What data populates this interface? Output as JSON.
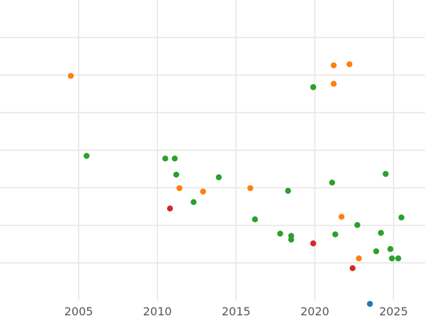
{
  "chart_data": {
    "type": "scatter",
    "title": "",
    "xlabel": "",
    "ylabel": "",
    "xlim": [
      2000.0,
      2027.0
    ],
    "ylim": [
      0.0,
      8.0
    ],
    "x_ticks": [
      2005,
      2010,
      2015,
      2020,
      2025
    ],
    "x_tick_labels": [
      "2005",
      "2010",
      "2015",
      "2020",
      "2025"
    ],
    "y_gridlines": [
      1,
      2,
      3,
      4,
      5,
      6,
      7
    ],
    "grid": true,
    "legend": "none",
    "colors": {
      "green": "#2ca02c",
      "orange": "#ff7f0e",
      "red": "#d62728",
      "blue": "#1f77b4",
      "grid": "#e5e5e5"
    },
    "series": [
      {
        "color": "#2ca02c",
        "points": [
          [
            2005.5,
            3.85
          ],
          [
            2010.5,
            3.78
          ],
          [
            2011.1,
            3.78
          ],
          [
            2011.2,
            3.35
          ],
          [
            2012.3,
            2.62
          ],
          [
            2013.9,
            3.28
          ],
          [
            2016.2,
            2.16
          ],
          [
            2017.8,
            1.78
          ],
          [
            2018.3,
            2.92
          ],
          [
            2018.5,
            1.72
          ],
          [
            2018.5,
            1.62
          ],
          [
            2019.9,
            5.68
          ],
          [
            2021.1,
            3.14
          ],
          [
            2021.3,
            1.76
          ],
          [
            2022.7,
            2.01
          ],
          [
            2023.9,
            1.31
          ],
          [
            2024.2,
            1.8
          ],
          [
            2024.5,
            3.37
          ],
          [
            2024.8,
            1.37
          ],
          [
            2024.9,
            1.12
          ],
          [
            2025.3,
            1.12
          ],
          [
            2025.5,
            2.21
          ]
        ]
      },
      {
        "color": "#ff7f0e",
        "points": [
          [
            2004.5,
            5.98
          ],
          [
            2011.4,
            2.99
          ],
          [
            2012.9,
            2.9
          ],
          [
            2015.9,
            2.99
          ],
          [
            2021.2,
            6.26
          ],
          [
            2021.2,
            5.77
          ],
          [
            2022.2,
            6.29
          ],
          [
            2021.7,
            2.23
          ],
          [
            2022.8,
            1.12
          ]
        ]
      },
      {
        "color": "#d62728",
        "points": [
          [
            2010.8,
            2.45
          ],
          [
            2019.9,
            1.52
          ],
          [
            2022.4,
            0.86
          ]
        ]
      },
      {
        "color": "#1f77b4",
        "points": [
          [
            2023.5,
            -0.09
          ]
        ]
      }
    ]
  }
}
